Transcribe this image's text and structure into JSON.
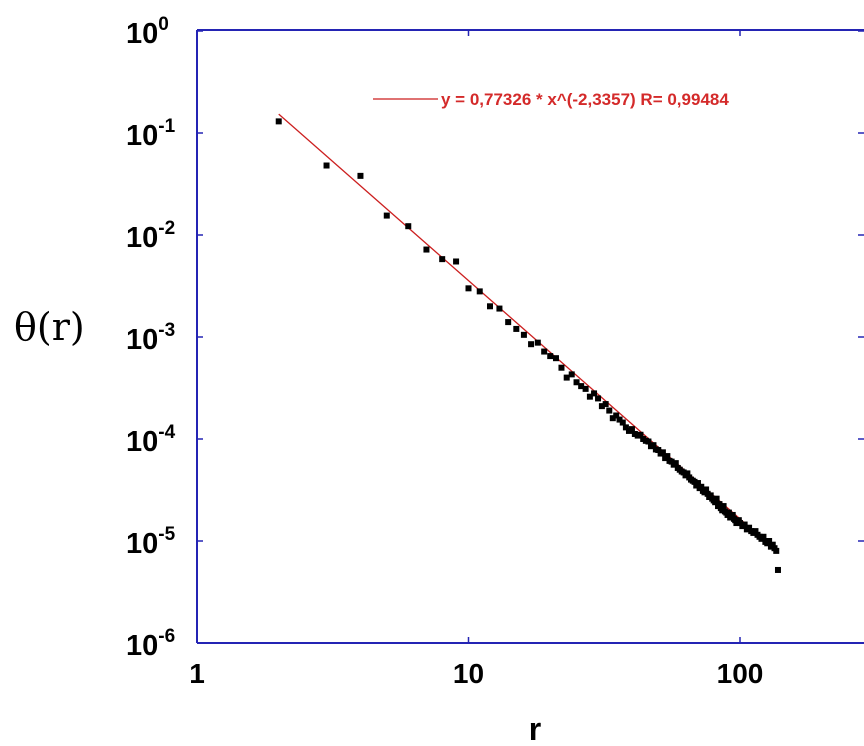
{
  "chart_data": {
    "type": "scatter",
    "title": "",
    "xlabel": "r",
    "ylabel": "θ(r)",
    "xscale": "log",
    "yscale": "log",
    "xlim": [
      1,
      200
    ],
    "ylim": [
      1e-06,
      1
    ],
    "grid": false,
    "axis_color": "#2424b4",
    "point_color": "#000000",
    "fit_color": "#cc1f1f",
    "x_ticks": [
      {
        "value": 1,
        "label": "1"
      },
      {
        "value": 10,
        "label": "10"
      },
      {
        "value": 100,
        "label": "100"
      }
    ],
    "y_ticks": [
      {
        "value": 1,
        "base": "10",
        "exp": "0"
      },
      {
        "value": 0.1,
        "base": "10",
        "exp": "-1"
      },
      {
        "value": 0.01,
        "base": "10",
        "exp": "-2"
      },
      {
        "value": 0.001,
        "base": "10",
        "exp": "-3"
      },
      {
        "value": 0.0001,
        "base": "10",
        "exp": "-4"
      },
      {
        "value": 1e-05,
        "base": "10",
        "exp": "-5"
      },
      {
        "value": 1e-06,
        "base": "10",
        "exp": "-6"
      }
    ],
    "legend": {
      "placement": "top-right",
      "text": "y = 0,77326 * x^(-2,3357)   R= 0,99484"
    },
    "fit": {
      "name": "y = 0,77326 * x^(-2,3357)",
      "amplitude": 0.77326,
      "exponent": -2.3357,
      "R": 0.99484,
      "x_range": [
        2,
        138
      ]
    },
    "series": [
      {
        "x": [
          2,
          3,
          4,
          5,
          6,
          7,
          8,
          9,
          10,
          11,
          12,
          13,
          14,
          15,
          16,
          17,
          18,
          19,
          20,
          21,
          22,
          23,
          24,
          25,
          26,
          27,
          28,
          29,
          30,
          31,
          32,
          33,
          34,
          35,
          36,
          37,
          38,
          39,
          40,
          41,
          42,
          43,
          44,
          45,
          46,
          47,
          48,
          49,
          50,
          51,
          52,
          53,
          54,
          55,
          56,
          57,
          58,
          59,
          60,
          61,
          62,
          63,
          64,
          65,
          66,
          67,
          68,
          69,
          70,
          71,
          72,
          73,
          74,
          75,
          76,
          77,
          78,
          79,
          80,
          81,
          82,
          83,
          84,
          85,
          86,
          87,
          88,
          89,
          90,
          91,
          92,
          93,
          94,
          95,
          96,
          97,
          98,
          99,
          100,
          102,
          104,
          106,
          108,
          110,
          112,
          114,
          116,
          118,
          120,
          122,
          124,
          126,
          128,
          130,
          132,
          134,
          136,
          138
        ],
        "y": [
          0.13,
          0.048,
          0.038,
          0.0155,
          0.0122,
          0.0072,
          0.0058,
          0.0055,
          0.003,
          0.0028,
          0.002,
          0.0019,
          0.0014,
          0.0012,
          0.00105,
          0.00085,
          0.00088,
          0.00072,
          0.00065,
          0.00062,
          0.0005,
          0.0004,
          0.00043,
          0.00036,
          0.00033,
          0.00031,
          0.00026,
          0.00028,
          0.00025,
          0.00021,
          0.00022,
          0.00019,
          0.00016,
          0.00017,
          0.000155,
          0.000145,
          0.00013,
          0.00012,
          0.000125,
          0.000112,
          0.000108,
          0.00011,
          0.0001,
          9.6e-05,
          9.45e-05,
          8.5e-05,
          8.7e-05,
          7.9e-05,
          7.8e-05,
          7.2e-05,
          7.4e-05,
          6.5e-05,
          6.8e-05,
          6.1e-05,
          6e-05,
          5.6e-05,
          5.8e-05,
          5.2e-05,
          5e-05,
          4.8e-05,
          4.7e-05,
          4.4e-05,
          4.6e-05,
          4.2e-05,
          4e-05,
          3.9e-05,
          3.8e-05,
          3.5e-05,
          3.7e-05,
          3.3e-05,
          3.4e-05,
          3.1e-05,
          3e-05,
          3.2e-05,
          2.9e-05,
          2.7e-05,
          2.8e-05,
          2.6e-05,
          2.5e-05,
          2.4e-05,
          2.6e-05,
          2.2e-05,
          2.3e-05,
          2.1e-05,
          2e-05,
          2.2e-05,
          1.95e-05,
          1.9e-05,
          1.8e-05,
          1.9e-05,
          1.7e-05,
          1.75e-05,
          1.8e-05,
          1.65e-05,
          1.6e-05,
          1.5e-05,
          1.55e-05,
          1.6e-05,
          1.5e-05,
          1.4e-05,
          1.45e-05,
          1.3e-05,
          1.35e-05,
          1.25e-05,
          1.2e-05,
          1.25e-05,
          1.15e-05,
          1.1e-05,
          1.05e-05,
          1.1e-05,
          9.8e-06,
          9.5e-06,
          1e-05,
          8.8e-06,
          9.2e-06,
          8.5e-06,
          8e-06,
          5.2e-06
        ]
      }
    ]
  }
}
